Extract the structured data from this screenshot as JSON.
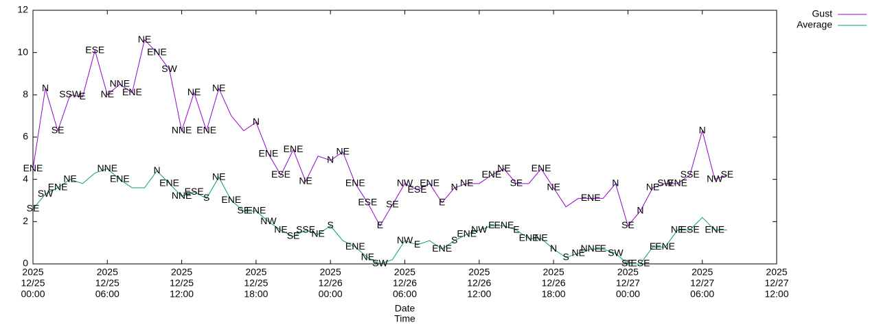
{
  "chart_data": {
    "type": "line",
    "xlabel": [
      "Date",
      "Time"
    ],
    "x": [
      "2025-12-25 00:00",
      "2025-12-25 01:00",
      "2025-12-25 02:00",
      "2025-12-25 03:00",
      "2025-12-25 04:00",
      "2025-12-25 05:00",
      "2025-12-25 06:00",
      "2025-12-25 07:00",
      "2025-12-25 08:00",
      "2025-12-25 09:00",
      "2025-12-25 10:00",
      "2025-12-25 11:00",
      "2025-12-25 12:00",
      "2025-12-25 13:00",
      "2025-12-25 14:00",
      "2025-12-25 15:00",
      "2025-12-25 16:00",
      "2025-12-25 17:00",
      "2025-12-25 18:00",
      "2025-12-25 19:00",
      "2025-12-25 20:00",
      "2025-12-25 21:00",
      "2025-12-25 22:00",
      "2025-12-25 23:00",
      "2025-12-26 00:00",
      "2025-12-26 01:00",
      "2025-12-26 02:00",
      "2025-12-26 03:00",
      "2025-12-26 04:00",
      "2025-12-26 05:00",
      "2025-12-26 06:00",
      "2025-12-26 07:00",
      "2025-12-26 08:00",
      "2025-12-26 09:00",
      "2025-12-26 10:00",
      "2025-12-26 11:00",
      "2025-12-26 12:00",
      "2025-12-26 13:00",
      "2025-12-26 14:00",
      "2025-12-26 15:00",
      "2025-12-26 16:00",
      "2025-12-26 17:00",
      "2025-12-26 18:00",
      "2025-12-26 19:00",
      "2025-12-26 20:00",
      "2025-12-26 21:00",
      "2025-12-26 22:00",
      "2025-12-26 23:00",
      "2025-12-27 00:00",
      "2025-12-27 01:00",
      "2025-12-27 02:00",
      "2025-12-27 03:00",
      "2025-12-27 04:00",
      "2025-12-27 05:00",
      "2025-12-27 06:00",
      "2025-12-27 07:00",
      "2025-12-27 08:00"
    ],
    "series": [
      {
        "name": "Gust",
        "color": "#9400d3",
        "values": [
          4.5,
          8.3,
          6.3,
          8.0,
          7.9,
          10.1,
          8.0,
          8.5,
          8.1,
          10.6,
          10.0,
          9.2,
          6.3,
          8.1,
          6.3,
          8.3,
          7.0,
          6.3,
          6.7,
          5.2,
          4.2,
          5.4,
          3.9,
          5.1,
          4.9,
          5.3,
          3.8,
          2.9,
          1.8,
          2.8,
          3.8,
          3.5,
          3.8,
          2.9,
          3.6,
          3.8,
          3.8,
          4.2,
          4.5,
          3.8,
          3.8,
          4.5,
          3.6,
          2.7,
          3.1,
          3.1,
          3.1,
          3.8,
          1.8,
          2.5,
          3.6,
          3.8,
          3.8,
          4.2,
          6.3,
          4.0,
          4.2
        ],
        "labels": [
          "ENE",
          "N",
          "SE",
          "SSW",
          "E",
          "ESE",
          "NE",
          "NNE",
          "ENE",
          "NE",
          "ENE",
          "SW",
          "NNE",
          "NE",
          "ENE",
          "NE",
          null,
          null,
          "N",
          "ENE",
          "ESE",
          "ENE",
          "NE",
          null,
          "N",
          "NE",
          "ENE",
          "ESE",
          "E",
          "SE",
          "NW",
          "ESE",
          "ENE",
          "E",
          "N",
          "NE",
          null,
          "ENE",
          "NE",
          "SE",
          null,
          "ENE",
          "NE",
          null,
          null,
          "ENE",
          null,
          "N",
          "SE",
          "N",
          "NE",
          "SW",
          "ENE",
          "SSE",
          "N",
          "NW",
          "SE"
        ]
      },
      {
        "name": "Average",
        "color": "#009e73",
        "values": [
          2.6,
          3.3,
          3.6,
          4.0,
          3.8,
          4.3,
          4.5,
          4.0,
          3.6,
          3.6,
          4.4,
          3.8,
          3.2,
          3.4,
          3.1,
          4.1,
          3.0,
          2.5,
          2.5,
          2.0,
          1.6,
          1.3,
          1.6,
          1.4,
          1.8,
          1.1,
          0.8,
          0.3,
          0.0,
          0.2,
          1.1,
          0.9,
          1.1,
          0.7,
          1.1,
          1.4,
          1.6,
          1.8,
          1.8,
          1.6,
          1.2,
          1.2,
          0.7,
          0.3,
          0.5,
          0.7,
          0.7,
          0.5,
          0.0,
          0.0,
          0.8,
          0.8,
          1.6,
          1.6,
          2.2,
          1.6,
          1.6
        ],
        "labels": [
          "SE",
          "SW",
          "ENE",
          "NE",
          null,
          null,
          "NNE",
          "ENE",
          null,
          null,
          "N",
          "ENE",
          "NNE",
          "ESE",
          "S",
          "NE",
          "ENE",
          "SE",
          "ENE",
          "NW",
          "NE",
          "SE",
          "SSE",
          "NE",
          "S",
          null,
          "ENE",
          "NE",
          "SW",
          null,
          "NW",
          "E",
          null,
          "ENE",
          "S",
          "ENE",
          "NW",
          "E",
          "ENE",
          "E",
          "ENE",
          "NE",
          "N",
          "S",
          "NE",
          "NNE",
          "E",
          "SW",
          "SE",
          "ESE",
          "E",
          "ENE",
          "NE",
          "ESE",
          null,
          "ENE",
          null
        ]
      }
    ],
    "xlim": [
      "2025-12-25 00:00",
      "2025-12-27 12:00"
    ],
    "xticks": [
      {
        "value": "2025-12-25 00:00",
        "label": [
          "2025",
          "12/25",
          "00:00"
        ]
      },
      {
        "value": "2025-12-25 06:00",
        "label": [
          "2025",
          "12/25",
          "06:00"
        ]
      },
      {
        "value": "2025-12-25 12:00",
        "label": [
          "2025",
          "12/25",
          "12:00"
        ]
      },
      {
        "value": "2025-12-25 18:00",
        "label": [
          "2025",
          "12/25",
          "18:00"
        ]
      },
      {
        "value": "2025-12-26 00:00",
        "label": [
          "2025",
          "12/26",
          "00:00"
        ]
      },
      {
        "value": "2025-12-26 06:00",
        "label": [
          "2025",
          "12/26",
          "06:00"
        ]
      },
      {
        "value": "2025-12-26 12:00",
        "label": [
          "2025",
          "12/26",
          "12:00"
        ]
      },
      {
        "value": "2025-12-26 18:00",
        "label": [
          "2025",
          "12/26",
          "18:00"
        ]
      },
      {
        "value": "2025-12-27 00:00",
        "label": [
          "2025",
          "12/27",
          "00:00"
        ]
      },
      {
        "value": "2025-12-27 06:00",
        "label": [
          "2025",
          "12/27",
          "06:00"
        ]
      },
      {
        "value": "2025-12-27 12:00",
        "label": [
          "2025",
          "12/27",
          "12:00"
        ]
      }
    ],
    "ylim": [
      0,
      12
    ],
    "yticks": [
      0,
      2,
      4,
      6,
      8,
      10,
      12
    ],
    "legend": "top-right",
    "grid": false
  }
}
